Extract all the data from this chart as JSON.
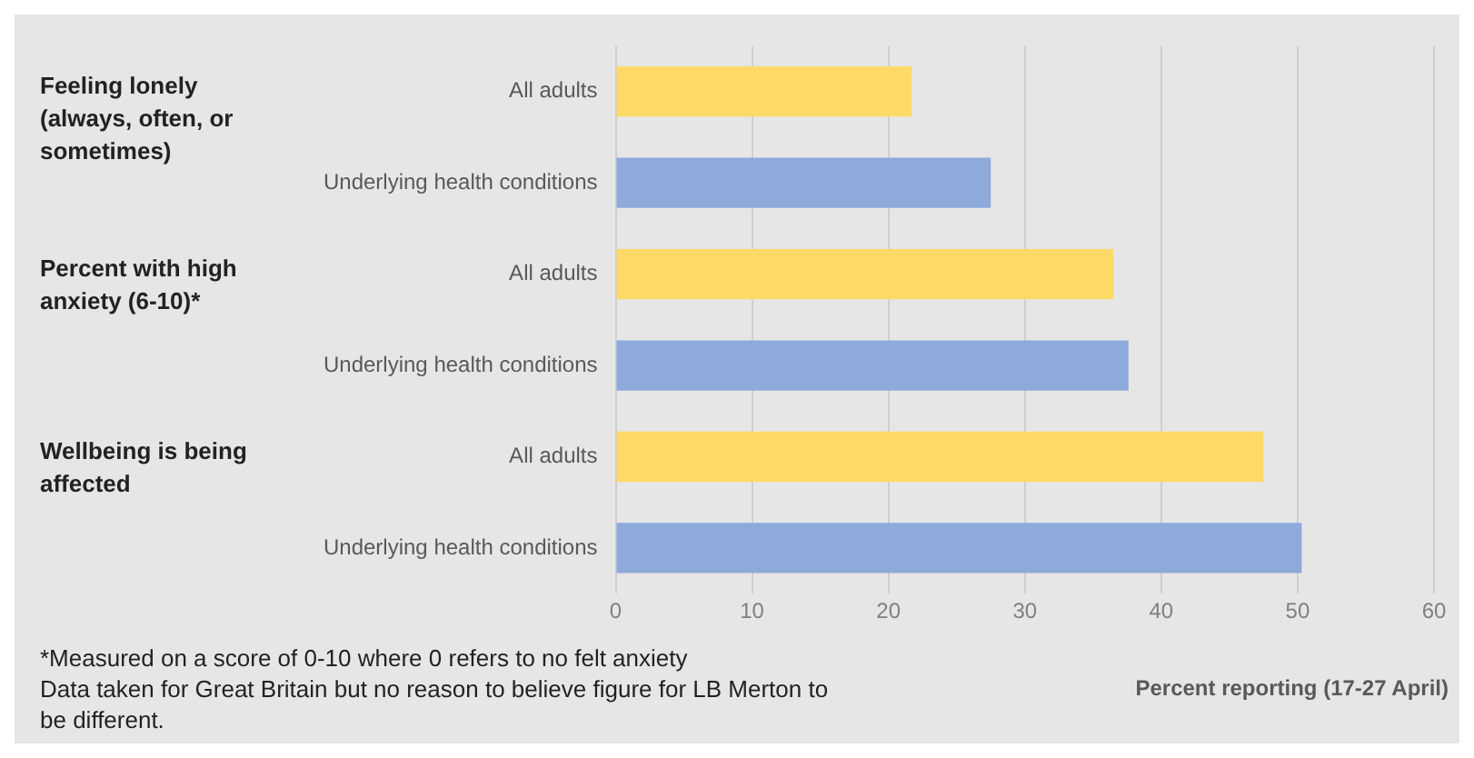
{
  "chart_data": {
    "type": "bar",
    "orientation": "horizontal",
    "categories": [
      "All adults",
      "Underlying health conditions",
      "All adults",
      "Underlying health conditions",
      "All adults",
      "Underlying health conditions"
    ],
    "values": [
      21.7,
      27.5,
      36.5,
      37.6,
      47.5,
      50.3
    ],
    "colors": [
      "#ffd966",
      "#8eaadb",
      "#ffd966",
      "#8eaadb",
      "#ffd966",
      "#8eaadb"
    ],
    "xlim": [
      0,
      60
    ],
    "xticks": [
      0,
      10,
      20,
      30,
      40,
      50,
      60
    ],
    "grid": "x",
    "legend": false,
    "xlabel": "Percent reporting (17-27 April)",
    "annotations": [
      "Feeling lonely (always, often, or sometimes)",
      "Percent with high anxiety (6-10)*",
      "Wellbeing is being affected",
      "*Measured on a score of 0-10 where 0 refers to no felt anxiety",
      "Data taken for Great Britain but no reason to believe figure for LB Merton to be different."
    ]
  }
}
